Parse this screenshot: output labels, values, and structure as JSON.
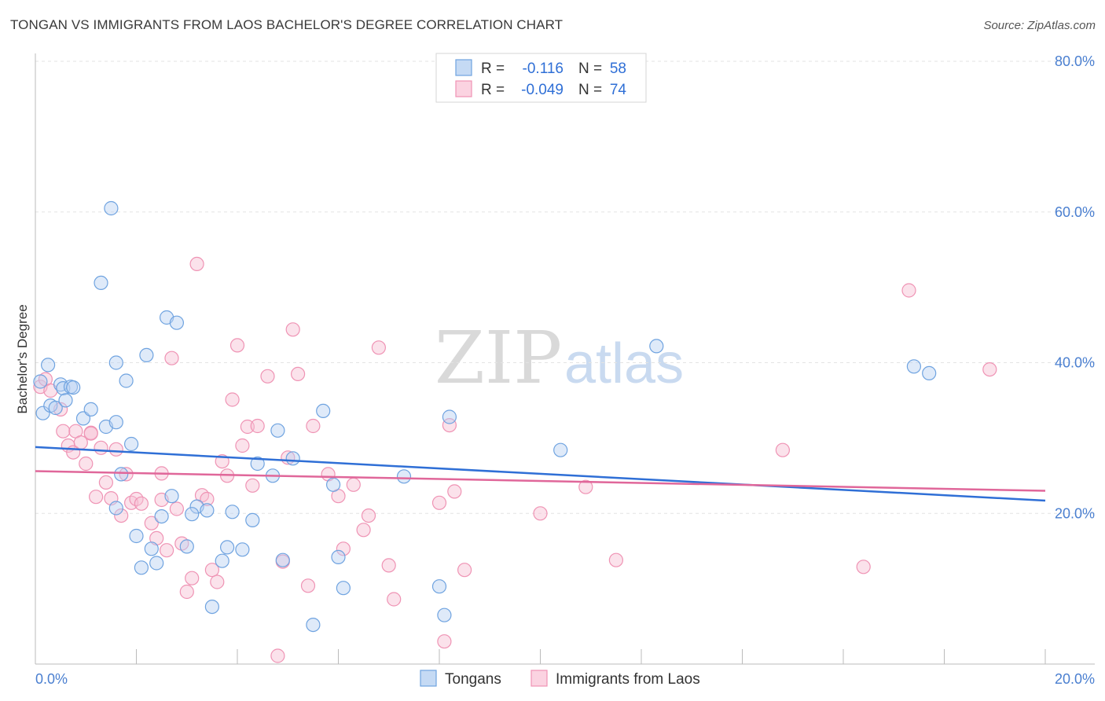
{
  "header": {
    "title": "TONGAN VS IMMIGRANTS FROM LAOS BACHELOR'S DEGREE CORRELATION CHART",
    "source": "Source: ZipAtlas.com"
  },
  "legend": {
    "rows": [
      {
        "r_label": "R =",
        "r_value": "-0.116",
        "n_label": "N =",
        "n_value": "58"
      },
      {
        "r_label": "R =",
        "r_value": "-0.049",
        "n_label": "N =",
        "n_value": "74"
      }
    ]
  },
  "watermark": {
    "part1": "ZIP",
    "part2": "atlas"
  },
  "colors": {
    "blue": "#6fa3e0",
    "blue_line": "#2f6fd6",
    "pink": "#ef93b4",
    "pink_line": "#e0679a",
    "grid": "#e3e3e3"
  },
  "chart_data": {
    "type": "scatter",
    "title": "TONGAN VS IMMIGRANTS FROM LAOS BACHELOR'S DEGREE CORRELATION CHART",
    "xlabel": "",
    "ylabel": "Bachelor's Degree",
    "xlim": [
      0,
      20
    ],
    "ylim": [
      0,
      82
    ],
    "x_tick_labels": [
      "0.0%",
      "20.0%"
    ],
    "y_ticks": [
      20,
      40,
      60,
      80
    ],
    "y_tick_labels": [
      "20.0%",
      "40.0%",
      "60.0%",
      "80.0%"
    ],
    "grid": true,
    "legend_position": "top-center",
    "series": [
      {
        "name": "Tongans",
        "color": "#6fa3e0",
        "trend": {
          "x": [
            0,
            20
          ],
          "y": [
            28.8,
            21.7
          ]
        },
        "points": [
          [
            0.1,
            37.5
          ],
          [
            0.15,
            33.3
          ],
          [
            0.25,
            39.7
          ],
          [
            0.3,
            34.3
          ],
          [
            0.4,
            34.0
          ],
          [
            0.5,
            37.1
          ],
          [
            0.55,
            36.6
          ],
          [
            0.6,
            35.0
          ],
          [
            0.7,
            36.8
          ],
          [
            0.75,
            36.7
          ],
          [
            0.95,
            32.6
          ],
          [
            1.1,
            33.8
          ],
          [
            1.3,
            50.6
          ],
          [
            1.4,
            31.5
          ],
          [
            1.6,
            32.1
          ],
          [
            1.6,
            40.0
          ],
          [
            1.8,
            37.6
          ],
          [
            1.9,
            29.2
          ],
          [
            2.0,
            17.0
          ],
          [
            1.5,
            60.5
          ],
          [
            1.7,
            25.2
          ],
          [
            2.2,
            41.0
          ],
          [
            2.3,
            15.3
          ],
          [
            2.4,
            13.4
          ],
          [
            2.5,
            19.6
          ],
          [
            2.6,
            46.0
          ],
          [
            2.7,
            22.3
          ],
          [
            2.8,
            45.3
          ],
          [
            3.0,
            15.6
          ],
          [
            3.2,
            20.9
          ],
          [
            3.4,
            20.4
          ],
          [
            3.5,
            7.6
          ],
          [
            3.7,
            13.7
          ],
          [
            3.8,
            15.5
          ],
          [
            3.9,
            20.2
          ],
          [
            4.1,
            15.2
          ],
          [
            4.3,
            19.1
          ],
          [
            4.4,
            26.6
          ],
          [
            4.7,
            25.0
          ],
          [
            4.8,
            31.0
          ],
          [
            5.1,
            27.3
          ],
          [
            5.5,
            5.2
          ],
          [
            5.7,
            33.6
          ],
          [
            5.9,
            23.8
          ],
          [
            6.0,
            14.2
          ],
          [
            6.1,
            10.1
          ],
          [
            7.3,
            24.9
          ],
          [
            8.0,
            10.3
          ],
          [
            8.1,
            6.5
          ],
          [
            8.2,
            32.8
          ],
          [
            10.4,
            28.4
          ],
          [
            12.3,
            42.2
          ],
          [
            17.4,
            39.5
          ],
          [
            17.7,
            38.6
          ],
          [
            1.6,
            20.7
          ],
          [
            2.1,
            12.8
          ],
          [
            3.1,
            19.9
          ],
          [
            4.9,
            13.8
          ]
        ]
      },
      {
        "name": "Immigrants from Laos",
        "color": "#ef93b4",
        "trend": {
          "x": [
            0,
            20
          ],
          "y": [
            25.6,
            23.0
          ]
        },
        "points": [
          [
            0.1,
            36.8
          ],
          [
            0.2,
            37.8
          ],
          [
            0.3,
            36.3
          ],
          [
            0.5,
            33.8
          ],
          [
            0.55,
            30.9
          ],
          [
            0.65,
            29.0
          ],
          [
            0.75,
            28.1
          ],
          [
            0.8,
            30.9
          ],
          [
            0.9,
            29.4
          ],
          [
            1.0,
            26.6
          ],
          [
            1.1,
            30.7
          ],
          [
            1.2,
            22.2
          ],
          [
            1.3,
            28.7
          ],
          [
            1.4,
            24.1
          ],
          [
            1.5,
            22.0
          ],
          [
            1.6,
            28.5
          ],
          [
            1.7,
            19.7
          ],
          [
            1.8,
            25.2
          ],
          [
            1.9,
            21.4
          ],
          [
            2.0,
            21.9
          ],
          [
            2.1,
            21.3
          ],
          [
            2.3,
            18.7
          ],
          [
            2.4,
            16.7
          ],
          [
            2.5,
            25.3
          ],
          [
            2.6,
            15.1
          ],
          [
            2.7,
            40.6
          ],
          [
            2.8,
            20.6
          ],
          [
            2.9,
            16.0
          ],
          [
            3.0,
            9.6
          ],
          [
            3.1,
            11.4
          ],
          [
            3.2,
            53.1
          ],
          [
            3.3,
            22.4
          ],
          [
            3.4,
            21.9
          ],
          [
            3.5,
            12.5
          ],
          [
            3.6,
            10.9
          ],
          [
            3.7,
            26.9
          ],
          [
            3.8,
            25.0
          ],
          [
            3.9,
            35.1
          ],
          [
            4.0,
            42.3
          ],
          [
            4.1,
            29.0
          ],
          [
            4.2,
            31.5
          ],
          [
            4.3,
            23.7
          ],
          [
            4.4,
            31.6
          ],
          [
            4.6,
            38.2
          ],
          [
            4.8,
            1.1
          ],
          [
            4.9,
            13.6
          ],
          [
            5.0,
            27.4
          ],
          [
            5.1,
            44.4
          ],
          [
            5.2,
            38.5
          ],
          [
            5.4,
            10.4
          ],
          [
            5.5,
            31.6
          ],
          [
            5.8,
            25.2
          ],
          [
            6.0,
            22.3
          ],
          [
            6.1,
            15.3
          ],
          [
            6.3,
            23.8
          ],
          [
            6.5,
            17.8
          ],
          [
            6.6,
            19.7
          ],
          [
            6.8,
            42.0
          ],
          [
            7.0,
            13.1
          ],
          [
            7.1,
            8.6
          ],
          [
            8.0,
            21.4
          ],
          [
            8.1,
            3.0
          ],
          [
            8.2,
            31.7
          ],
          [
            8.3,
            22.9
          ],
          [
            8.5,
            12.5
          ],
          [
            10.0,
            20.0
          ],
          [
            10.9,
            23.5
          ],
          [
            11.5,
            13.8
          ],
          [
            14.8,
            28.4
          ],
          [
            16.4,
            12.9
          ],
          [
            17.3,
            49.6
          ],
          [
            18.9,
            39.1
          ],
          [
            1.1,
            30.6
          ],
          [
            2.5,
            21.8
          ]
        ]
      }
    ]
  }
}
